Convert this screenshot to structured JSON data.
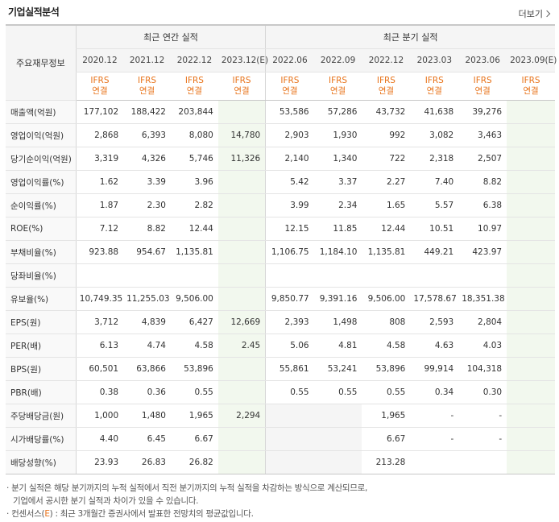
{
  "header": {
    "title": "기업실적분석",
    "more_label": "더보기"
  },
  "table": {
    "row_header_label": "주요재무정보",
    "annual_group_label": "최근 연간 실적",
    "quarter_group_label": "최근 분기 실적",
    "annual_periods": [
      "2020.12",
      "2021.12",
      "2022.12",
      "2023.12(E)"
    ],
    "quarter_periods": [
      "2022.06",
      "2022.09",
      "2022.12",
      "2023.03",
      "2023.06",
      "2023.09(E)"
    ],
    "basis_line1": "IFRS",
    "basis_line2": "연결",
    "rows": [
      {
        "label": "매출액(억원)",
        "annual": [
          "177,102",
          "188,422",
          "203,844",
          ""
        ],
        "quarter": [
          "53,586",
          "57,286",
          "43,732",
          "41,638",
          "39,276",
          ""
        ]
      },
      {
        "label": "영업이익(억원)",
        "annual": [
          "2,868",
          "6,393",
          "8,080",
          "14,780"
        ],
        "quarter": [
          "2,903",
          "1,930",
          "992",
          "3,082",
          "3,463",
          ""
        ]
      },
      {
        "label": "당기순이익(억원)",
        "annual": [
          "3,319",
          "4,326",
          "5,746",
          "11,326"
        ],
        "quarter": [
          "2,140",
          "1,340",
          "722",
          "2,318",
          "2,507",
          ""
        ]
      },
      {
        "label": "영업이익률(%)",
        "annual": [
          "1.62",
          "3.39",
          "3.96",
          ""
        ],
        "quarter": [
          "5.42",
          "3.37",
          "2.27",
          "7.40",
          "8.82",
          ""
        ]
      },
      {
        "label": "순이익률(%)",
        "annual": [
          "1.87",
          "2.30",
          "2.82",
          ""
        ],
        "quarter": [
          "3.99",
          "2.34",
          "1.65",
          "5.57",
          "6.38",
          ""
        ]
      },
      {
        "label": "ROE(%)",
        "annual": [
          "7.12",
          "8.82",
          "12.44",
          ""
        ],
        "quarter": [
          "12.15",
          "11.85",
          "12.44",
          "10.51",
          "10.97",
          ""
        ]
      },
      {
        "label": "부채비율(%)",
        "annual": [
          "923.88",
          "954.67",
          "1,135.81",
          ""
        ],
        "quarter": [
          "1,106.75",
          "1,184.10",
          "1,135.81",
          "449.21",
          "423.97",
          ""
        ]
      },
      {
        "label": "당좌비율(%)",
        "annual": [
          "",
          "",
          "",
          ""
        ],
        "quarter": [
          "",
          "",
          "",
          "",
          "",
          ""
        ]
      },
      {
        "label": "유보율(%)",
        "annual": [
          "10,749.35",
          "11,255.03",
          "9,506.00",
          ""
        ],
        "quarter": [
          "9,850.77",
          "9,391.16",
          "9,506.00",
          "17,578.67",
          "18,351.38",
          ""
        ]
      },
      {
        "label": "EPS(원)",
        "annual": [
          "3,712",
          "4,839",
          "6,427",
          "12,669"
        ],
        "quarter": [
          "2,393",
          "1,498",
          "808",
          "2,593",
          "2,804",
          ""
        ]
      },
      {
        "label": "PER(배)",
        "annual": [
          "6.13",
          "4.74",
          "4.58",
          "2.45"
        ],
        "quarter": [
          "5.06",
          "4.81",
          "4.58",
          "4.63",
          "4.03",
          ""
        ]
      },
      {
        "label": "BPS(원)",
        "annual": [
          "60,501",
          "63,866",
          "53,896",
          ""
        ],
        "quarter": [
          "55,861",
          "53,241",
          "53,896",
          "99,914",
          "104,318",
          ""
        ]
      },
      {
        "label": "PBR(배)",
        "annual": [
          "0.38",
          "0.36",
          "0.55",
          ""
        ],
        "quarter": [
          "0.55",
          "0.55",
          "0.55",
          "0.34",
          "0.30",
          ""
        ]
      },
      {
        "label": "주당배당금(원)",
        "annual": [
          "1,000",
          "1,480",
          "1,965",
          "2,294"
        ],
        "quarter": [
          "",
          "",
          "1,965",
          "-",
          "-",
          ""
        ]
      },
      {
        "label": "시가배당률(%)",
        "annual": [
          "4.40",
          "6.45",
          "6.67",
          ""
        ],
        "quarter": [
          "",
          "",
          "6.67",
          "-",
          "-",
          ""
        ]
      },
      {
        "label": "배당성향(%)",
        "annual": [
          "23.93",
          "26.83",
          "26.82",
          ""
        ],
        "quarter": [
          "",
          "",
          "213.28",
          "",
          "",
          ""
        ]
      }
    ]
  },
  "notes": {
    "line1": "· 분기 실적은 해당 분기까지의 누적 실적에서 직전 분기까지의 누적 실적을 차감하는 방식으로 계산되므로,",
    "line2": "  기업에서 공시한 분기 실적과 차이가 있을 수 있습니다.",
    "line3_prefix": "· 컨센서스(",
    "line3_em": "E",
    "line3_suffix": ") : 최근 3개월간 증권사에서 발표한 전망치의 평균값입니다."
  }
}
